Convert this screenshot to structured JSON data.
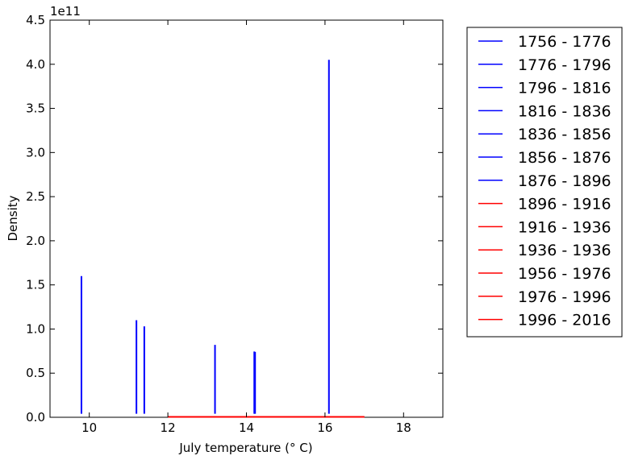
{
  "chart_data": {
    "type": "line",
    "xlabel": "July temperature (° C)",
    "ylabel": "Density",
    "y_scale_label": "1e11",
    "xlim": [
      9,
      19
    ],
    "ylim": [
      0,
      4.5
    ],
    "y_unit": "1e11",
    "x_ticks": [
      10,
      12,
      14,
      16,
      18
    ],
    "y_ticks": [
      0.0,
      0.5,
      1.0,
      1.5,
      2.0,
      2.5,
      3.0,
      3.5,
      4.0,
      4.5
    ],
    "x_tick_labels": [
      "10",
      "12",
      "14",
      "16",
      "18"
    ],
    "y_tick_labels": [
      "0.0",
      "0.5",
      "1.0",
      "1.5",
      "2.0",
      "2.5",
      "3.0",
      "3.5",
      "4.0",
      "4.5"
    ],
    "grid": false,
    "legend_position": "outside-right",
    "series": [
      {
        "name": "1756 - 1776",
        "color": "#0000ff",
        "spike_x": 9.8,
        "spike_y": 1.6
      },
      {
        "name": "1776 - 1796",
        "color": "#0000ff",
        "spike_x": 11.2,
        "spike_y": 1.1
      },
      {
        "name": "1796 - 1816",
        "color": "#0000ff",
        "spike_x": 11.4,
        "spike_y": 1.03
      },
      {
        "name": "1816 - 1836",
        "color": "#0000ff",
        "spike_x": 13.2,
        "spike_y": 0.82
      },
      {
        "name": "1836 - 1856",
        "color": "#0000ff",
        "spike_x": 14.2,
        "spike_y": 0.745
      },
      {
        "name": "1856 - 1876",
        "color": "#0000ff",
        "spike_x": 14.22,
        "spike_y": 0.74
      },
      {
        "name": "1876 - 1896",
        "color": "#0000ff",
        "spike_x": 16.1,
        "spike_y": 4.05
      },
      {
        "name": "1896 - 1916",
        "color": "#ff0000",
        "flat_range": [
          12.0,
          17.0
        ],
        "flat_y": 0.004
      },
      {
        "name": "1916 - 1936",
        "color": "#ff0000",
        "flat_range": [
          12.0,
          17.0
        ],
        "flat_y": 0.004
      },
      {
        "name": "1936 - 1936",
        "color": "#ff0000",
        "flat_range": [
          12.0,
          17.0
        ],
        "flat_y": 0.004
      },
      {
        "name": "1956 - 1976",
        "color": "#ff0000",
        "flat_range": [
          12.0,
          17.0
        ],
        "flat_y": 0.004
      },
      {
        "name": "1976 - 1996",
        "color": "#ff0000",
        "flat_range": [
          12.0,
          17.0
        ],
        "flat_y": 0.004
      },
      {
        "name": "1996 - 2016",
        "color": "#ff0000",
        "flat_range": [
          12.0,
          17.0
        ],
        "flat_y": 0.004
      }
    ]
  }
}
